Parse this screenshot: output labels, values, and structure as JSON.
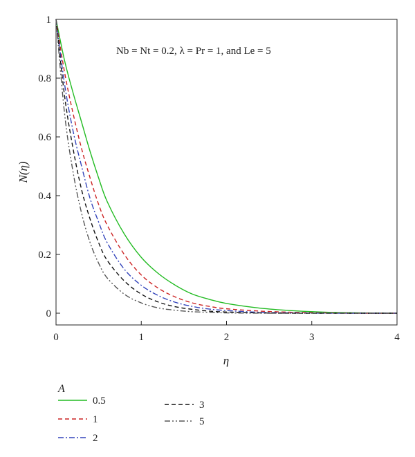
{
  "chart_data": {
    "type": "line",
    "xlabel": "η",
    "ylabel": "N(η)",
    "xlim": [
      0,
      4
    ],
    "ylim": [
      -0.04,
      1.0
    ],
    "x_ticks": [
      0,
      1,
      2,
      3,
      4
    ],
    "y_ticks": [
      0,
      0.2,
      0.4,
      0.6,
      0.8,
      1
    ],
    "x_tick_labels": [
      "0",
      "1",
      "2",
      "3",
      "4"
    ],
    "y_tick_labels": [
      "0",
      "0.2",
      "0.4",
      "0.6",
      "0.8",
      "1"
    ],
    "annotation": "Nb = Nt = 0.2, λ = Pr = 1, and Le = 5",
    "grid": false,
    "legend": {
      "title": "A",
      "placement": "below-plot"
    },
    "series": [
      {
        "name": "0.5",
        "color": "#22bb22",
        "dash": "solid",
        "x": [
          0,
          0.1,
          0.2,
          0.3,
          0.4,
          0.5,
          0.6,
          0.8,
          1.0,
          1.2,
          1.4,
          1.6,
          1.8,
          2.0,
          2.4,
          2.8,
          3.2,
          3.6,
          4.0
        ],
        "y": [
          1.0,
          0.86,
          0.75,
          0.65,
          0.55,
          0.46,
          0.38,
          0.27,
          0.19,
          0.135,
          0.095,
          0.065,
          0.047,
          0.033,
          0.017,
          0.008,
          0.003,
          0.001,
          0.0
        ]
      },
      {
        "name": "1",
        "color": "#cc2222",
        "dash": "6,4",
        "x": [
          0,
          0.1,
          0.2,
          0.3,
          0.4,
          0.5,
          0.6,
          0.8,
          1.0,
          1.2,
          1.4,
          1.6,
          1.8,
          2.0,
          2.4,
          2.8,
          3.2,
          3.6,
          4.0
        ],
        "y": [
          1.0,
          0.82,
          0.68,
          0.56,
          0.46,
          0.37,
          0.3,
          0.2,
          0.13,
          0.085,
          0.055,
          0.035,
          0.023,
          0.015,
          0.007,
          0.003,
          0.001,
          0.0,
          0.0
        ]
      },
      {
        "name": "2",
        "color": "#3344bb",
        "dash": "8,3,2,3",
        "x": [
          0,
          0.1,
          0.2,
          0.3,
          0.4,
          0.5,
          0.6,
          0.8,
          1.0,
          1.2,
          1.4,
          1.6,
          1.8,
          2.0,
          2.4,
          2.8,
          3.2,
          3.6,
          4.0
        ],
        "y": [
          1.0,
          0.78,
          0.62,
          0.5,
          0.39,
          0.31,
          0.24,
          0.15,
          0.095,
          0.06,
          0.037,
          0.023,
          0.014,
          0.009,
          0.003,
          0.001,
          0.0,
          0.0,
          0.0
        ]
      },
      {
        "name": "3",
        "color": "#111111",
        "dash": "6,4",
        "x": [
          0,
          0.1,
          0.2,
          0.3,
          0.4,
          0.5,
          0.6,
          0.8,
          1.0,
          1.2,
          1.4,
          1.6,
          1.8,
          2.0,
          2.4,
          2.8,
          3.2,
          3.6,
          4.0
        ],
        "y": [
          1.0,
          0.74,
          0.56,
          0.42,
          0.32,
          0.24,
          0.18,
          0.11,
          0.065,
          0.038,
          0.022,
          0.013,
          0.007,
          0.004,
          0.001,
          0.0,
          0.0,
          0.0,
          0.0
        ]
      },
      {
        "name": "5",
        "color": "#555555",
        "dash": "8,3,2,3,2,3",
        "x": [
          0,
          0.1,
          0.2,
          0.3,
          0.4,
          0.5,
          0.6,
          0.8,
          1.0,
          1.2,
          1.4,
          1.6,
          1.8,
          2.0,
          2.4,
          2.8,
          3.2,
          3.6,
          4.0
        ],
        "y": [
          1.0,
          0.68,
          0.48,
          0.34,
          0.24,
          0.17,
          0.12,
          0.065,
          0.035,
          0.018,
          0.01,
          0.005,
          0.003,
          0.001,
          0.0,
          0.0,
          0.0,
          0.0,
          0.0
        ]
      }
    ]
  }
}
